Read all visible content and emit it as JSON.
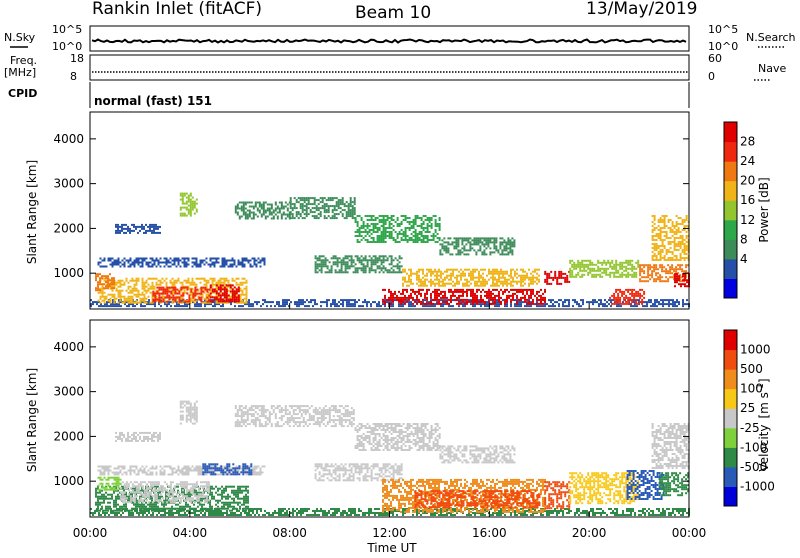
{
  "header": {
    "station": "Rankin Inlet (fitACF)",
    "beam": "Beam 10",
    "date": "13/May/2019"
  },
  "status_panels": {
    "nsky_label": "N.Sky",
    "nsky_ticks": [
      "10^5",
      "10^0"
    ],
    "nsearch_label": "N.Search",
    "nsearch_ticks": [
      "10^5",
      "10^0"
    ],
    "freq_label_1": "Freq.",
    "freq_label_2": "[MHz]",
    "freq_ticks": [
      "18",
      "8"
    ],
    "nave_label": "Nave",
    "nave_ticks": [
      "60",
      "0"
    ],
    "cpid_label": "CPID",
    "cpid_text": "normal (fast) 151"
  },
  "chart_data": [
    {
      "type": "heatmap",
      "name": "power-panel",
      "ylabel": "Slant Range [km]",
      "y_ticks": [
        1000,
        2000,
        3000,
        4000
      ],
      "ylim": [
        200,
        4600
      ],
      "xlim": [
        0,
        24
      ],
      "colorbar_label": "Power [dB]",
      "colorbar_ticks": [
        "28",
        "24",
        "20",
        "16",
        "12",
        "8",
        "4"
      ],
      "colors": [
        "#0000e0",
        "#2650a8",
        "#3c8c5a",
        "#2ea64a",
        "#92c52e",
        "#f0b418",
        "#f07812",
        "#f02810",
        "#e00000"
      ],
      "regions": [
        {
          "t0": 0.0,
          "t1": 24.0,
          "r0": 250,
          "r1": 420,
          "level": 1
        },
        {
          "t0": 0.3,
          "t1": 6.3,
          "r0": 350,
          "r1": 900,
          "level": 5
        },
        {
          "t0": 2.5,
          "t1": 4.8,
          "r0": 380,
          "r1": 700,
          "level": 7
        },
        {
          "t0": 4.8,
          "t1": 6.0,
          "r0": 380,
          "r1": 750,
          "level": 8
        },
        {
          "t0": 0.2,
          "t1": 1.0,
          "r0": 600,
          "r1": 1000,
          "level": 6
        },
        {
          "t0": 0.3,
          "t1": 7.0,
          "r0": 1150,
          "r1": 1350,
          "level": 1
        },
        {
          "t0": 1.0,
          "t1": 2.8,
          "r0": 1900,
          "r1": 2100,
          "level": 1
        },
        {
          "t0": 3.6,
          "t1": 4.3,
          "r0": 2300,
          "r1": 2800,
          "level": 4
        },
        {
          "t0": 5.8,
          "t1": 8.0,
          "r0": 2200,
          "r1": 2600,
          "level": 2
        },
        {
          "t0": 8.0,
          "t1": 10.6,
          "r0": 2250,
          "r1": 2700,
          "level": 2
        },
        {
          "t0": 10.6,
          "t1": 14.0,
          "r0": 1700,
          "r1": 2300,
          "level": 3
        },
        {
          "t0": 14.0,
          "t1": 17.0,
          "r0": 1400,
          "r1": 1800,
          "level": 2
        },
        {
          "t0": 9.0,
          "t1": 12.5,
          "r0": 1000,
          "r1": 1400,
          "level": 2
        },
        {
          "t0": 11.7,
          "t1": 18.2,
          "r0": 300,
          "r1": 650,
          "level": 8
        },
        {
          "t0": 12.5,
          "t1": 18.0,
          "r0": 700,
          "r1": 1100,
          "level": 5
        },
        {
          "t0": 18.2,
          "t1": 19.2,
          "r0": 750,
          "r1": 1050,
          "level": 8
        },
        {
          "t0": 19.2,
          "t1": 22.0,
          "r0": 900,
          "r1": 1300,
          "level": 4
        },
        {
          "t0": 20.8,
          "t1": 22.2,
          "r0": 300,
          "r1": 650,
          "level": 7
        },
        {
          "t0": 22.0,
          "t1": 24.0,
          "r0": 800,
          "r1": 1200,
          "level": 6
        },
        {
          "t0": 22.5,
          "t1": 24.0,
          "r0": 1300,
          "r1": 2300,
          "level": 5
        },
        {
          "t0": 23.4,
          "t1": 24.0,
          "r0": 700,
          "r1": 1000,
          "level": 8
        }
      ]
    },
    {
      "type": "heatmap",
      "name": "velocity-panel",
      "ylabel": "Slant Range [km]",
      "y_ticks": [
        1000,
        2000,
        3000,
        4000
      ],
      "ylim": [
        200,
        4600
      ],
      "xlim": [
        0,
        24
      ],
      "xlabel": "Time UT",
      "x_ticks": [
        "00:00",
        "04:00",
        "08:00",
        "12:00",
        "16:00",
        "20:00",
        "00:00"
      ],
      "colorbar_label_main": "Velocity",
      "colorbar_label_unit": "[m s",
      "colorbar_label_exp": "-1",
      "colorbar_ticks": [
        "1000",
        "500",
        "100",
        "25",
        "-25",
        "-100",
        "-500",
        "-1000"
      ],
      "colors": [
        "#0000d8",
        "#2a5ab8",
        "#2f8a48",
        "#7ed03c",
        "#c8c8c8",
        "#f8c818",
        "#f08c1c",
        "#f04c10",
        "#e00000"
      ],
      "regions": [
        {
          "t0": 0.0,
          "t1": 24.0,
          "r0": 250,
          "r1": 400,
          "level": 2
        },
        {
          "t0": 0.2,
          "t1": 6.3,
          "r0": 350,
          "r1": 900,
          "level": 2
        },
        {
          "t0": 1.2,
          "t1": 4.8,
          "r0": 550,
          "r1": 1000,
          "level": 4
        },
        {
          "t0": 0.3,
          "t1": 1.2,
          "r0": 800,
          "r1": 1100,
          "level": 3
        },
        {
          "t0": 0.3,
          "t1": 7.0,
          "r0": 1150,
          "r1": 1350,
          "level": 4
        },
        {
          "t0": 4.5,
          "t1": 6.5,
          "r0": 1150,
          "r1": 1400,
          "level": 1
        },
        {
          "t0": 1.0,
          "t1": 2.8,
          "r0": 1900,
          "r1": 2100,
          "level": 4
        },
        {
          "t0": 3.6,
          "t1": 4.3,
          "r0": 2300,
          "r1": 2800,
          "level": 4
        },
        {
          "t0": 5.8,
          "t1": 10.6,
          "r0": 2250,
          "r1": 2700,
          "level": 4
        },
        {
          "t0": 10.6,
          "t1": 14.0,
          "r0": 1700,
          "r1": 2300,
          "level": 4
        },
        {
          "t0": 14.0,
          "t1": 17.0,
          "r0": 1400,
          "r1": 1800,
          "level": 4
        },
        {
          "t0": 9.0,
          "t1": 12.5,
          "r0": 1000,
          "r1": 1400,
          "level": 4
        },
        {
          "t0": 11.7,
          "t1": 18.2,
          "r0": 300,
          "r1": 1050,
          "level": 6
        },
        {
          "t0": 13.0,
          "t1": 18.0,
          "r0": 400,
          "r1": 800,
          "level": 7
        },
        {
          "t0": 18.2,
          "t1": 19.2,
          "r0": 400,
          "r1": 1000,
          "level": 7
        },
        {
          "t0": 19.2,
          "t1": 22.0,
          "r0": 500,
          "r1": 1200,
          "level": 5
        },
        {
          "t0": 21.5,
          "t1": 23.0,
          "r0": 600,
          "r1": 1250,
          "level": 1
        },
        {
          "t0": 22.5,
          "t1": 24.0,
          "r0": 1300,
          "r1": 2300,
          "level": 4
        },
        {
          "t0": 22.8,
          "t1": 24.0,
          "r0": 700,
          "r1": 1200,
          "level": 2
        }
      ]
    }
  ]
}
